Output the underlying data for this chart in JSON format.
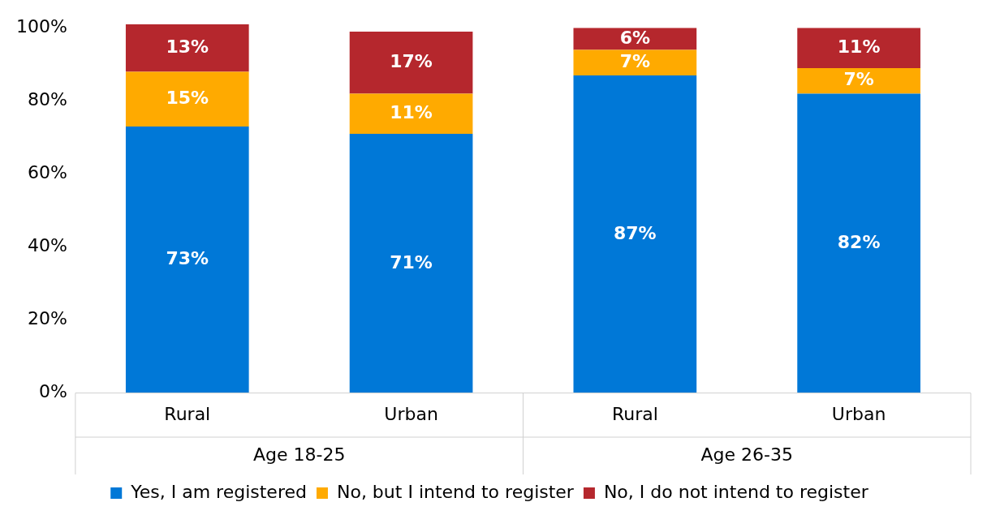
{
  "chart_data": {
    "type": "bar",
    "stacked": true,
    "categories": [
      "Rural",
      "Urban",
      "Rural",
      "Urban"
    ],
    "annotations": [
      "Age 18-25",
      "Age 26-35"
    ],
    "series": [
      {
        "name": "Yes, I am registered",
        "color": "#0078d7",
        "values": [
          73,
          71,
          87,
          82
        ],
        "value_labels": [
          "73%",
          "71%",
          "87%",
          "82%"
        ]
      },
      {
        "name": "No, but I intend to register",
        "color": "#ffaa00",
        "values": [
          15,
          11,
          7,
          7
        ],
        "value_labels": [
          "15%",
          "11%",
          "7%",
          "7%"
        ]
      },
      {
        "name": "No, I do not intend to register",
        "color": "#b5272d",
        "values": [
          13,
          17,
          6,
          11
        ],
        "value_labels": [
          "13%",
          "17%",
          "6%",
          "11%"
        ]
      }
    ],
    "ylim": [
      0,
      101
    ],
    "yticks": [
      {
        "value": 0,
        "label": "0%"
      },
      {
        "value": 20,
        "label": "20%"
      },
      {
        "value": 40,
        "label": "40%"
      },
      {
        "value": 60,
        "label": "60%"
      },
      {
        "value": 80,
        "label": "80%"
      },
      {
        "value": 100,
        "label": "100%"
      }
    ],
    "grid": false,
    "legend": "bottom"
  }
}
